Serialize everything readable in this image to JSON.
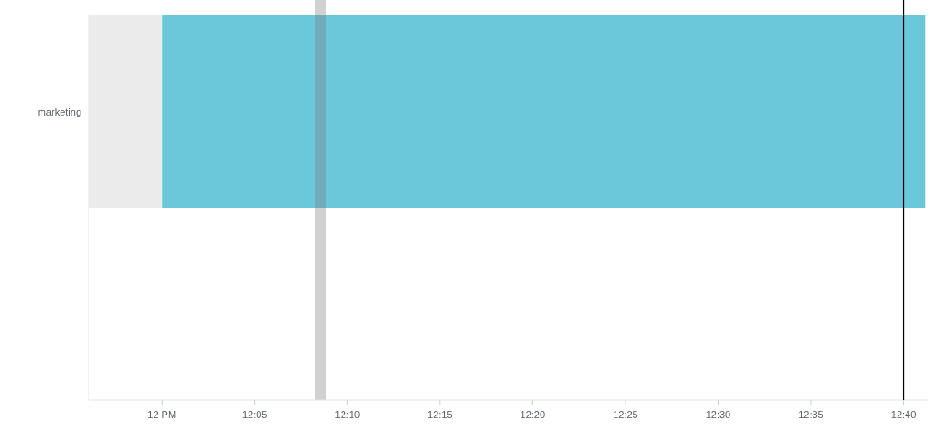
{
  "chart_data": {
    "type": "bar",
    "orientation": "horizontal",
    "categories": [
      "marketing",
      null
    ],
    "series": [
      {
        "color": "#6bc8db",
        "values": [
          0.686,
          null
        ],
        "base": [
          12.0,
          null
        ]
      }
    ],
    "xlim": [
      11.934,
      12.689
    ],
    "xticks": [
      {
        "value": 12.0,
        "label": "12 PM"
      },
      {
        "value": 12.0833,
        "label": "12:05"
      },
      {
        "value": 12.1667,
        "label": "12:10"
      },
      {
        "value": 12.25,
        "label": "12:15"
      },
      {
        "value": 12.3333,
        "label": "12:20"
      },
      {
        "value": 12.4167,
        "label": "12:25"
      },
      {
        "value": 12.5,
        "label": "12:30"
      },
      {
        "value": 12.5833,
        "label": "12:35"
      },
      {
        "value": 12.6667,
        "label": "12:40"
      }
    ],
    "bands": [
      {
        "axis": "x",
        "from": 11.934,
        "to": 12.0,
        "color": "#ebebeb"
      },
      {
        "axis": "x",
        "from": 12.1372,
        "to": 12.1478,
        "color": "#7a7a7a"
      }
    ],
    "ref_lines": [
      {
        "axis": "x",
        "value": 12.6667,
        "color": "#000000"
      }
    ]
  }
}
